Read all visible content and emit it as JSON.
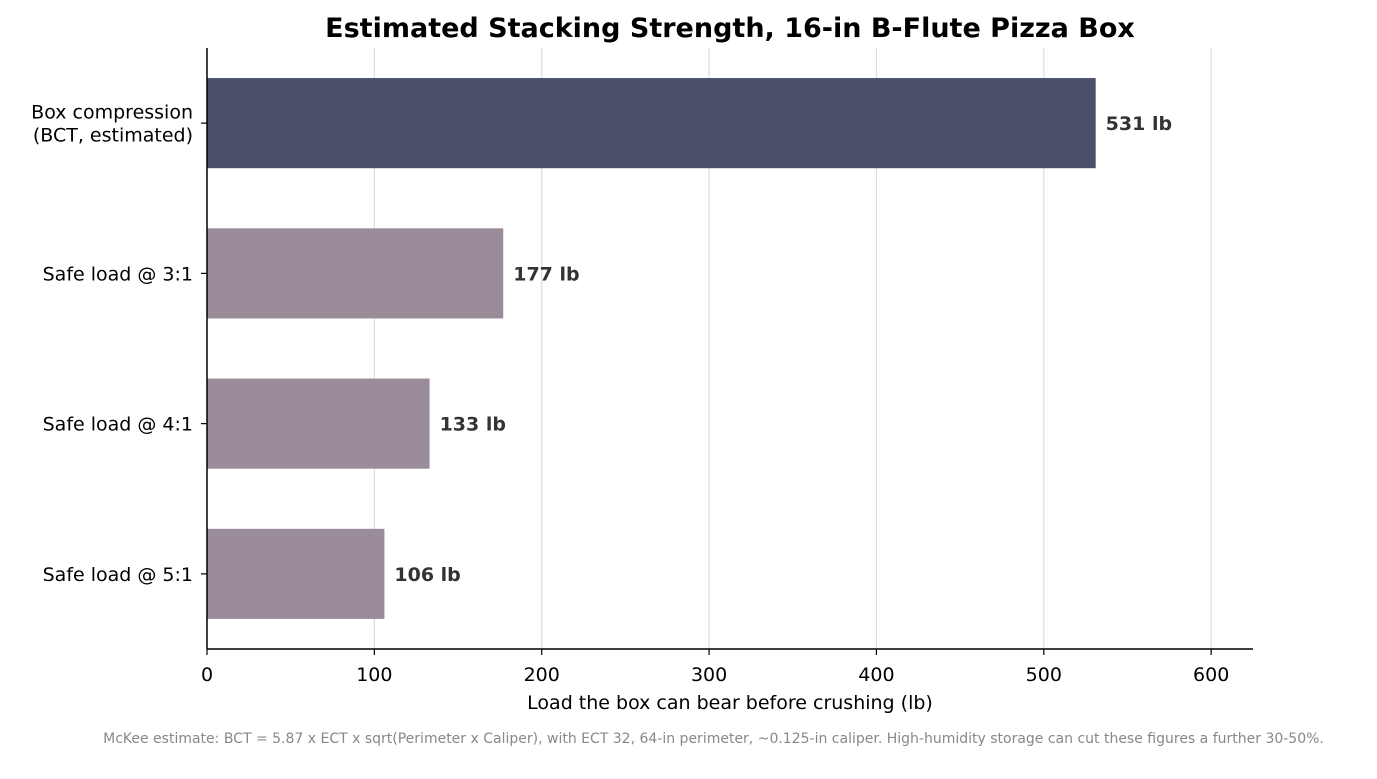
{
  "chart_data": {
    "type": "bar",
    "orientation": "horizontal",
    "title": "Estimated Stacking Strength, 16-in B-Flute Pizza Box",
    "xlabel": "Load the box can bear before crushing (lb)",
    "ylabel": "",
    "xlim": [
      0,
      625
    ],
    "xticks": [
      0,
      100,
      200,
      300,
      400,
      500,
      600
    ],
    "grid": "vertical",
    "categories": [
      [
        "Box compression",
        "(BCT, estimated)"
      ],
      [
        "Safe load @ 3:1"
      ],
      [
        "Safe load @ 4:1"
      ],
      [
        "Safe load @ 5:1"
      ]
    ],
    "values": [
      531,
      177,
      133,
      106
    ],
    "data_labels": [
      "531 lb",
      "177 lb",
      "133 lb",
      "106 lb"
    ],
    "colors": [
      "#4a5069",
      "#9a8c99",
      "#9a8c99",
      "#9a8c99"
    ],
    "label_color": "#333333",
    "gridline_color": "#dddddd"
  },
  "footnote": "McKee estimate: BCT = 5.87 x ECT x sqrt(Perimeter x Caliper), with ECT 32, 64-in perimeter, ~0.125-in caliper. High-humidity storage can cut these figures a further 30-50%."
}
